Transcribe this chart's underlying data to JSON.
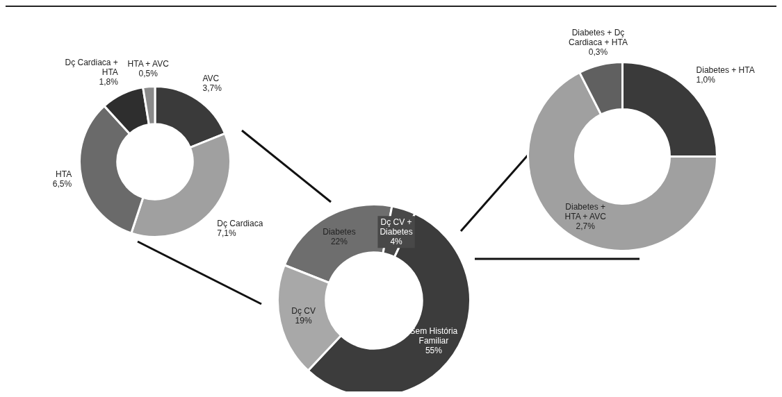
{
  "chart_data": [
    {
      "type": "donut",
      "categories": [
        "AVC",
        "Dç Cardiaca",
        "HTA",
        "Dç Cardiaca + HTA",
        "HTA + AVC"
      ],
      "values": [
        3.7,
        7.1,
        6.5,
        1.8,
        0.5
      ],
      "value_labels": [
        "3,7%",
        "7,1%",
        "6,5%",
        "1,8%",
        "0,5%"
      ],
      "colors": [
        "#3a3a3a",
        "#a0a0a0",
        "#6a6a6a",
        "#2e2e2e",
        "#8a8a8a"
      ]
    },
    {
      "type": "donut",
      "categories": [
        "Diabetes",
        "Dç CV + Diabetes",
        "Sem História Familiar",
        "Dç CV"
      ],
      "values": [
        22,
        4,
        55,
        19
      ],
      "value_labels": [
        "22%",
        "4%",
        "55%",
        "19%"
      ],
      "colors": [
        "#6e6e6e",
        "#484848",
        "#3c3c3c",
        "#a8a8a8"
      ]
    },
    {
      "type": "donut",
      "categories": [
        "Diabetes + HTA",
        "Diabetes + HTA + AVC",
        "Diabetes + Dç Cardiaca + HTA"
      ],
      "values": [
        1.0,
        2.7,
        0.3
      ],
      "value_labels": [
        "1,0%",
        "2,7%",
        "0,3%"
      ],
      "colors": [
        "#3a3a3a",
        "#a0a0a0",
        "#606060"
      ]
    }
  ]
}
